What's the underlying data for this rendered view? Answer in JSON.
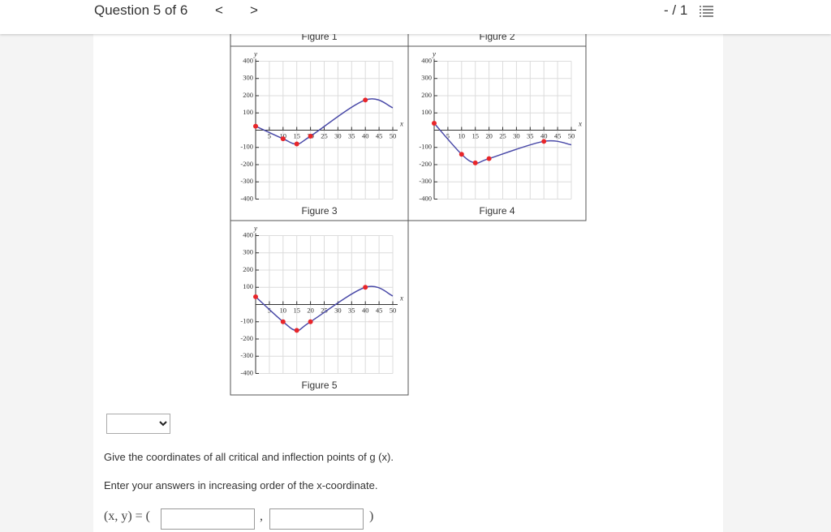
{
  "header": {
    "title": "Question 5 of 6",
    "prev": "<",
    "next": ">",
    "score": "- / 1"
  },
  "figures": [
    {
      "caption": "Figure 1"
    },
    {
      "caption": "Figure 2"
    },
    {
      "caption": "Figure 3",
      "x_label": "x",
      "y_label": "y",
      "xlim": [
        0,
        50
      ],
      "ylim": [
        -400,
        400
      ],
      "xticks": [
        5,
        10,
        15,
        20,
        25,
        30,
        35,
        40,
        45,
        50
      ],
      "yticks": [
        400,
        300,
        200,
        100,
        -100,
        -200,
        -300,
        -400
      ],
      "curve": {
        "x": [
          0,
          10,
          15,
          20,
          40,
          50
        ],
        "y": [
          23,
          -50,
          -80,
          -35,
          175,
          130
        ]
      },
      "points": {
        "x": [
          0,
          10,
          15,
          20,
          40
        ],
        "y": [
          23,
          -50,
          -80,
          -35,
          175
        ]
      }
    },
    {
      "caption": "Figure 4",
      "x_label": "x",
      "y_label": "y",
      "xlim": [
        0,
        50
      ],
      "ylim": [
        -400,
        400
      ],
      "xticks": [
        5,
        10,
        15,
        20,
        25,
        30,
        35,
        40,
        45,
        50
      ],
      "yticks": [
        400,
        300,
        200,
        100,
        -100,
        -200,
        -300,
        -400
      ],
      "curve": {
        "x": [
          0,
          10,
          15,
          20,
          40,
          50
        ],
        "y": [
          40,
          -140,
          -190,
          -165,
          -65,
          -85
        ]
      },
      "points": {
        "x": [
          0,
          10,
          15,
          20,
          40
        ],
        "y": [
          40,
          -140,
          -190,
          -165,
          -65
        ]
      }
    },
    {
      "caption": "Figure 5",
      "x_label": "x",
      "y_label": "y",
      "xlim": [
        0,
        50
      ],
      "ylim": [
        -400,
        400
      ],
      "xticks": [
        5,
        10,
        15,
        20,
        25,
        30,
        35,
        40,
        45,
        50
      ],
      "yticks": [
        400,
        300,
        200,
        100,
        -100,
        -200,
        -300,
        -400
      ],
      "curve": {
        "x": [
          0,
          10,
          15,
          20,
          40,
          50
        ],
        "y": [
          45,
          -100,
          -150,
          -100,
          100,
          50
        ]
      },
      "points": {
        "x": [
          0,
          10,
          15,
          20,
          40
        ],
        "y": [
          45,
          -100,
          -150,
          -100,
          100
        ]
      }
    }
  ],
  "prompt": "Give the coordinates of all critical and inflection points of g (x).",
  "instruction": "Enter your answers in increasing order of the x-coordinate.",
  "answer": {
    "label": "(x, y) = (",
    "separator": ",",
    "close": ")"
  }
}
